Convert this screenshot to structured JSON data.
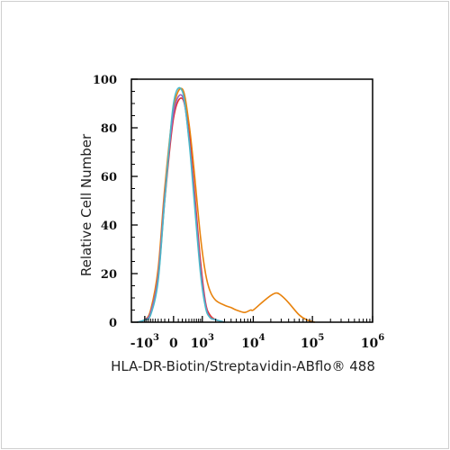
{
  "chart_data": {
    "type": "area",
    "title": "",
    "xlabel": "HLA-DR-Biotin/Streptavidin-ABflo® 488",
    "ylabel": "Relative Cell Number",
    "x_scale": "biexponential",
    "xlim": [
      -2000,
      1000000
    ],
    "ylim": [
      0,
      100
    ],
    "y_ticks": [
      "0",
      "20",
      "40",
      "60",
      "80",
      "100"
    ],
    "x_ticks": [
      {
        "base": "-10",
        "exp": "3"
      },
      {
        "base": "0",
        "exp": ""
      },
      {
        "base": "10",
        "exp": "3"
      },
      {
        "base": "10",
        "exp": "4"
      },
      {
        "base": "10",
        "exp": "5"
      },
      {
        "base": "10",
        "exp": "6"
      }
    ],
    "grid": false,
    "legend": "none",
    "series": [
      {
        "color": "#e8820c",
        "x": [
          -1500,
          -1000,
          -700,
          -400,
          -200,
          0,
          200,
          400,
          600,
          900,
          1200,
          1500,
          2000,
          3000,
          4000,
          5000,
          7000,
          9000,
          10000,
          14000,
          20000,
          25000,
          30000,
          40000,
          60000,
          80000,
          110000
        ],
        "y": [
          0,
          1,
          5,
          22,
          55,
          88,
          96,
          82,
          62,
          35,
          20,
          13,
          9,
          7,
          6,
          5,
          4,
          5,
          5,
          8,
          11,
          12,
          11,
          8,
          3,
          1,
          0
        ]
      },
      {
        "color": "#e03030",
        "x": [
          -1500,
          -1000,
          -700,
          -400,
          -200,
          0,
          200,
          400,
          600,
          900,
          1200,
          1500,
          2000,
          3000
        ],
        "y": [
          0,
          1,
          4,
          18,
          50,
          84,
          92,
          78,
          55,
          25,
          8,
          3,
          1,
          0
        ]
      },
      {
        "color": "#9b5fc0",
        "x": [
          -1500,
          -1000,
          -700,
          -400,
          -200,
          0,
          200,
          400,
          600,
          900,
          1200,
          1500,
          2000,
          3000
        ],
        "y": [
          0,
          1,
          4,
          19,
          52,
          86,
          93,
          76,
          52,
          22,
          7,
          2,
          1,
          0
        ]
      },
      {
        "color": "#4bb8c8",
        "x": [
          -1500,
          -1000,
          -700,
          -400,
          -200,
          0,
          200,
          400,
          600,
          900,
          1200,
          1500,
          2000,
          3000
        ],
        "y": [
          0,
          1,
          3,
          17,
          50,
          90,
          95,
          75,
          50,
          20,
          6,
          2,
          1,
          0
        ]
      }
    ]
  }
}
